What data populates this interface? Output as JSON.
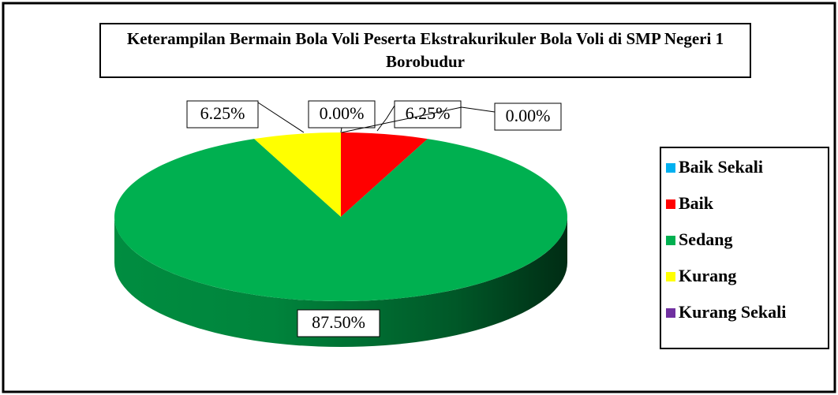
{
  "chart_data": {
    "type": "pie",
    "three_d": true,
    "title": "Keterampilan Bermain Bola Voli Peserta Ekstrakurikuler Bola Voli di SMP Negeri 1 Borobudur",
    "categories": [
      "Baik Sekali",
      "Baik",
      "Sedang",
      "Kurang",
      "Kurang Sekali"
    ],
    "values": [
      0,
      6.25,
      87.5,
      6.25,
      0
    ],
    "value_labels": [
      "0.00%",
      "6.25%",
      "87.50%",
      "6.25%",
      "0.00%"
    ],
    "colors": [
      "#00b0f0",
      "#ff0000",
      "#00b050",
      "#ffff00",
      "#7030a0"
    ],
    "legend": "right"
  }
}
